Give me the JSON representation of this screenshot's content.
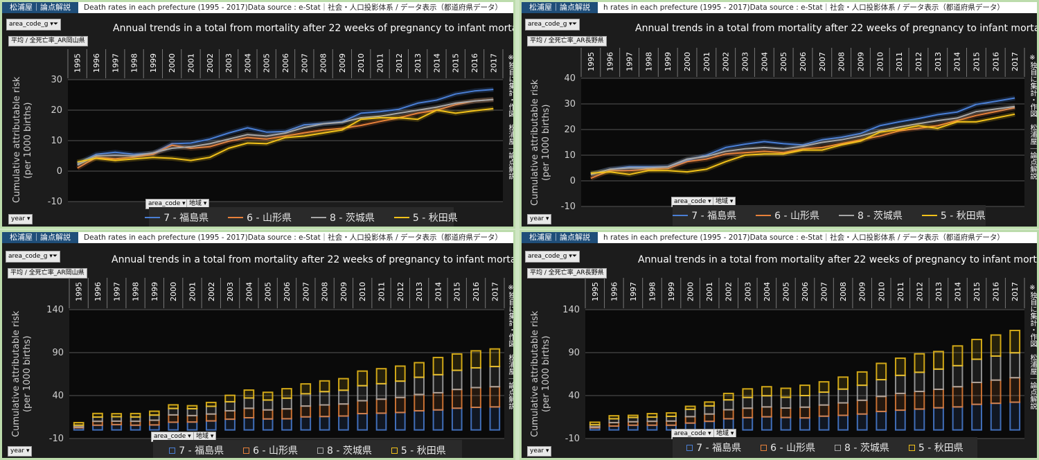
{
  "brand": "松浦屋｜論点解説",
  "panels": [
    {
      "subtitle": "Death rates in each prefecture (1995 - 2017)Data source : e-Stat｜社会・人口投影体系 / データ表示（都道府県データ）",
      "filter_chip": "area_code_g",
      "area_chip": "平均 / 全死亡率_AR岡山県",
      "title": "Annual trends in a total from mortality after 22 weeks of pregnancy to infant mortality",
      "vertical_note": "※独自に集計・作図　松浦屋｜論点解説",
      "legend_chip_a": "area_code",
      "legend_chip_b": "地域",
      "year_chip": "year"
    },
    {
      "subtitle": "h rates in each prefecture (1995 - 2017)Data source : e-Stat｜社会・人口投影体系 / データ表示（都道府県データ）",
      "filter_chip": "area_code_g",
      "area_chip": "平均 / 全死亡率_AR長野県",
      "title": "Annual trends in a total from mortality after 22 weeks of pregnancy to infant mortality",
      "vertical_note": "※独自に集計・作図　松浦屋｜論点解説",
      "legend_chip_a": "area_code",
      "legend_chip_b": "地域",
      "year_chip": "year"
    },
    {
      "subtitle": "Death rates in each prefecture (1995 - 2017)Data source : e-Stat｜社会・人口投影体系 / データ表示（都道府県データ）",
      "filter_chip": "area_code_g",
      "area_chip": "平均 / 全死亡率_AR岡山県",
      "title": "Annual trends in a total from mortality after 22 weeks of pregnancy to infant mortality",
      "vertical_note": "※独自に集計・作図　松浦屋｜論点解説",
      "legend_chip_a": "area_code",
      "legend_chip_b": "地域",
      "year_chip": "year"
    },
    {
      "subtitle": "h rates in each prefecture (1995 - 2017)Data source : e-Stat｜社会・人口投影体系 / データ表示（都道府県データ）",
      "filter_chip": "area_code_g",
      "area_chip": "平均 / 全死亡率_AR長野県",
      "title": "Annual trends in a total from mortality after 22 weeks of pregnancy to infant mortality",
      "vertical_note": "※独自に集計・作図　松浦屋｜論点解説",
      "legend_chip_a": "area_code",
      "legend_chip_b": "地域",
      "year_chip": "year"
    }
  ],
  "colors": {
    "fukushima": "#4a7fd6",
    "yamagata": "#e8813a",
    "ibaraki": "#a8a8a8",
    "akita": "#f2c21a"
  },
  "chart_data": [
    {
      "type": "line",
      "title": "Annual trends in a total from mortality after 22 weeks of pregnancy to infant mortality",
      "ylabel": "Cumulative attributable risk\n(per 1000 births)",
      "ylim": [
        -10,
        30
      ],
      "yticks": [
        -10,
        0,
        10,
        20,
        30
      ],
      "grid": true,
      "legend_position": "bottom",
      "x": [
        "1995",
        "1996",
        "1997",
        "1998",
        "1999",
        "2000",
        "2001",
        "2002",
        "2003",
        "2004",
        "2005",
        "2006",
        "2007",
        "2008",
        "2009",
        "2010",
        "2011",
        "2012",
        "2013",
        "2014",
        "2015",
        "2016",
        "2017"
      ],
      "series": [
        {
          "name": "7 - 福島県",
          "color_key": "fukushima",
          "values": [
            2.5,
            5.5,
            6.2,
            5.5,
            5.8,
            9.0,
            9.2,
            10.5,
            12.5,
            14.2,
            12.8,
            13.0,
            15.2,
            15.6,
            16.2,
            19.0,
            19.5,
            20.3,
            22.3,
            23.3,
            25.3,
            26.3,
            26.8
          ]
        },
        {
          "name": "6 - 山形県",
          "color_key": "yamagata",
          "values": [
            1.0,
            4.5,
            4.0,
            4.6,
            5.5,
            8.5,
            7.5,
            8.0,
            9.8,
            11.0,
            10.5,
            11.5,
            12.6,
            13.5,
            14.0,
            15.0,
            16.3,
            17.5,
            19.0,
            20.0,
            21.8,
            23.0,
            23.5
          ]
        },
        {
          "name": "8 - 茨城県",
          "color_key": "ibaraki",
          "values": [
            2.0,
            5.0,
            5.2,
            5.0,
            6.0,
            7.5,
            8.0,
            9.0,
            10.5,
            12.0,
            11.5,
            12.5,
            14.3,
            15.5,
            16.0,
            17.5,
            18.0,
            19.0,
            20.0,
            21.0,
            22.3,
            23.0,
            23.5
          ]
        },
        {
          "name": "5 - 秋田県",
          "color_key": "akita",
          "values": [
            3.0,
            4.2,
            3.5,
            4.0,
            4.5,
            4.2,
            3.5,
            4.5,
            7.5,
            9.2,
            9.0,
            11.0,
            11.5,
            12.5,
            13.5,
            17.0,
            17.5,
            17.5,
            17.0,
            20.0,
            19.0,
            19.8,
            20.5
          ]
        }
      ]
    },
    {
      "type": "line",
      "title": "Annual trends in a total from mortality after 22 weeks of pregnancy to infant mortality",
      "ylabel": "Cumulative attributable risk\n(per 1000 births)",
      "ylim": [
        -10,
        40
      ],
      "yticks": [
        -10,
        0,
        10,
        20,
        30,
        40
      ],
      "grid": true,
      "legend_position": "bottom",
      "x": [
        "1995",
        "1996",
        "1997",
        "1998",
        "1999",
        "2000",
        "2001",
        "2002",
        "2003",
        "2004",
        "2005",
        "2006",
        "2007",
        "2008",
        "2009",
        "2010",
        "2011",
        "2012",
        "2013",
        "2014",
        "2015",
        "2016",
        "2017"
      ],
      "series": [
        {
          "name": "7 - 福島県",
          "color_key": "fukushima",
          "values": [
            2.5,
            4.5,
            5.5,
            5.5,
            5.5,
            8.0,
            10.0,
            13.0,
            14.3,
            15.3,
            14.5,
            14.0,
            16.0,
            17.0,
            18.5,
            21.5,
            23.0,
            24.3,
            25.8,
            26.8,
            29.8,
            31.0,
            32.3
          ]
        },
        {
          "name": "6 - 山形県",
          "color_key": "yamagata",
          "values": [
            1.0,
            4.0,
            4.0,
            4.5,
            4.8,
            7.5,
            8.5,
            10.5,
            11.0,
            11.5,
            11.0,
            12.5,
            13.0,
            14.5,
            16.0,
            17.5,
            19.5,
            20.5,
            21.5,
            23.5,
            25.5,
            27.0,
            28.5
          ]
        },
        {
          "name": "8 - 茨城県",
          "color_key": "ibaraki",
          "values": [
            2.5,
            4.5,
            5.0,
            5.0,
            5.5,
            8.5,
            9.5,
            11.5,
            12.5,
            13.0,
            12.5,
            13.5,
            15.0,
            16.0,
            17.5,
            19.5,
            21.0,
            22.3,
            23.5,
            24.5,
            27.0,
            28.0,
            29.0
          ]
        },
        {
          "name": "5 - 秋田県",
          "color_key": "akita",
          "values": [
            3.0,
            3.5,
            2.5,
            4.0,
            4.0,
            3.5,
            4.5,
            7.5,
            10.0,
            10.5,
            10.5,
            12.0,
            12.0,
            14.0,
            15.5,
            19.0,
            20.0,
            21.5,
            20.5,
            23.0,
            23.0,
            24.5,
            26.0
          ]
        }
      ]
    },
    {
      "type": "bar",
      "stacked": true,
      "title": "Annual trends in a total from mortality after 22 weeks of pregnancy to infant mortality",
      "ylabel": "Cumulative attributable risk\n(per 1000 births)",
      "ylim": [
        -10,
        140
      ],
      "yticks": [
        -10,
        40,
        90,
        140
      ],
      "grid": true,
      "legend_position": "bottom",
      "x": [
        "1995",
        "1996",
        "1997",
        "1998",
        "1999",
        "2000",
        "2001",
        "2002",
        "2003",
        "2004",
        "2005",
        "2006",
        "2007",
        "2008",
        "2009",
        "2010",
        "2011",
        "2012",
        "2013",
        "2014",
        "2015",
        "2016",
        "2017"
      ],
      "series": [
        {
          "name": "7 - 福島県",
          "color_key": "fukushima",
          "values": [
            2.5,
            5.5,
            6.2,
            5.5,
            5.8,
            9.0,
            9.2,
            10.5,
            12.5,
            14.2,
            12.8,
            13.0,
            15.2,
            15.6,
            16.2,
            19.0,
            19.5,
            20.3,
            22.3,
            23.3,
            25.3,
            26.3,
            26.8
          ]
        },
        {
          "name": "6 - 山形県",
          "color_key": "yamagata",
          "values": [
            1.0,
            4.5,
            4.0,
            4.6,
            5.5,
            8.5,
            7.5,
            8.0,
            9.8,
            11.0,
            10.5,
            11.5,
            12.6,
            13.5,
            14.0,
            15.0,
            16.3,
            17.5,
            19.0,
            20.0,
            21.8,
            23.0,
            23.5
          ]
        },
        {
          "name": "8 - 茨城県",
          "color_key": "ibaraki",
          "values": [
            2.0,
            5.0,
            5.2,
            5.0,
            6.0,
            7.5,
            8.0,
            9.0,
            10.5,
            12.0,
            11.5,
            12.5,
            14.3,
            15.5,
            16.0,
            17.5,
            18.0,
            19.0,
            20.0,
            21.0,
            22.3,
            23.0,
            23.5
          ]
        },
        {
          "name": "5 - 秋田県",
          "color_key": "akita",
          "values": [
            3.0,
            4.2,
            3.5,
            4.0,
            4.5,
            4.2,
            3.5,
            4.5,
            7.5,
            9.2,
            9.0,
            11.0,
            11.5,
            12.5,
            13.5,
            17.0,
            17.5,
            17.5,
            17.0,
            20.0,
            19.0,
            19.8,
            20.5
          ]
        }
      ]
    },
    {
      "type": "bar",
      "stacked": true,
      "title": "Annual trends in a total from mortality after 22 weeks of pregnancy to infant mortality",
      "ylabel": "Cumulative attributable risk\n(per 1000 births)",
      "ylim": [
        -10,
        140
      ],
      "yticks": [
        -10,
        40,
        90,
        140
      ],
      "grid": true,
      "legend_position": "bottom",
      "x": [
        "1995",
        "1996",
        "1997",
        "1998",
        "1999",
        "2000",
        "2001",
        "2002",
        "2003",
        "2004",
        "2005",
        "2006",
        "2007",
        "2008",
        "2009",
        "2010",
        "2011",
        "2012",
        "2013",
        "2014",
        "2015",
        "2016",
        "2017"
      ],
      "series": [
        {
          "name": "7 - 福島県",
          "color_key": "fukushima",
          "values": [
            2.5,
            4.5,
            5.5,
            5.5,
            5.5,
            8.0,
            10.0,
            13.0,
            14.3,
            15.3,
            14.5,
            14.0,
            16.0,
            17.0,
            18.5,
            21.5,
            23.0,
            24.3,
            25.8,
            26.8,
            29.8,
            31.0,
            32.3
          ]
        },
        {
          "name": "6 - 山形県",
          "color_key": "yamagata",
          "values": [
            1.0,
            4.0,
            4.0,
            4.5,
            4.8,
            7.5,
            8.5,
            10.5,
            11.0,
            11.5,
            11.0,
            12.5,
            13.0,
            14.5,
            16.0,
            17.5,
            19.5,
            20.5,
            21.5,
            23.5,
            25.5,
            27.0,
            28.5
          ]
        },
        {
          "name": "8 - 茨城県",
          "color_key": "ibaraki",
          "values": [
            2.5,
            4.5,
            5.0,
            5.0,
            5.5,
            8.5,
            9.5,
            11.5,
            12.5,
            13.0,
            12.5,
            13.5,
            15.0,
            16.0,
            17.5,
            19.5,
            21.0,
            22.3,
            23.5,
            24.5,
            27.0,
            28.0,
            29.0
          ]
        },
        {
          "name": "5 - 秋田県",
          "color_key": "akita",
          "values": [
            3.0,
            3.5,
            2.5,
            4.0,
            4.0,
            3.5,
            4.5,
            7.5,
            10.0,
            10.5,
            10.5,
            12.0,
            12.0,
            14.0,
            15.5,
            19.0,
            20.0,
            21.5,
            20.5,
            23.0,
            23.0,
            24.5,
            26.0
          ]
        }
      ]
    }
  ]
}
